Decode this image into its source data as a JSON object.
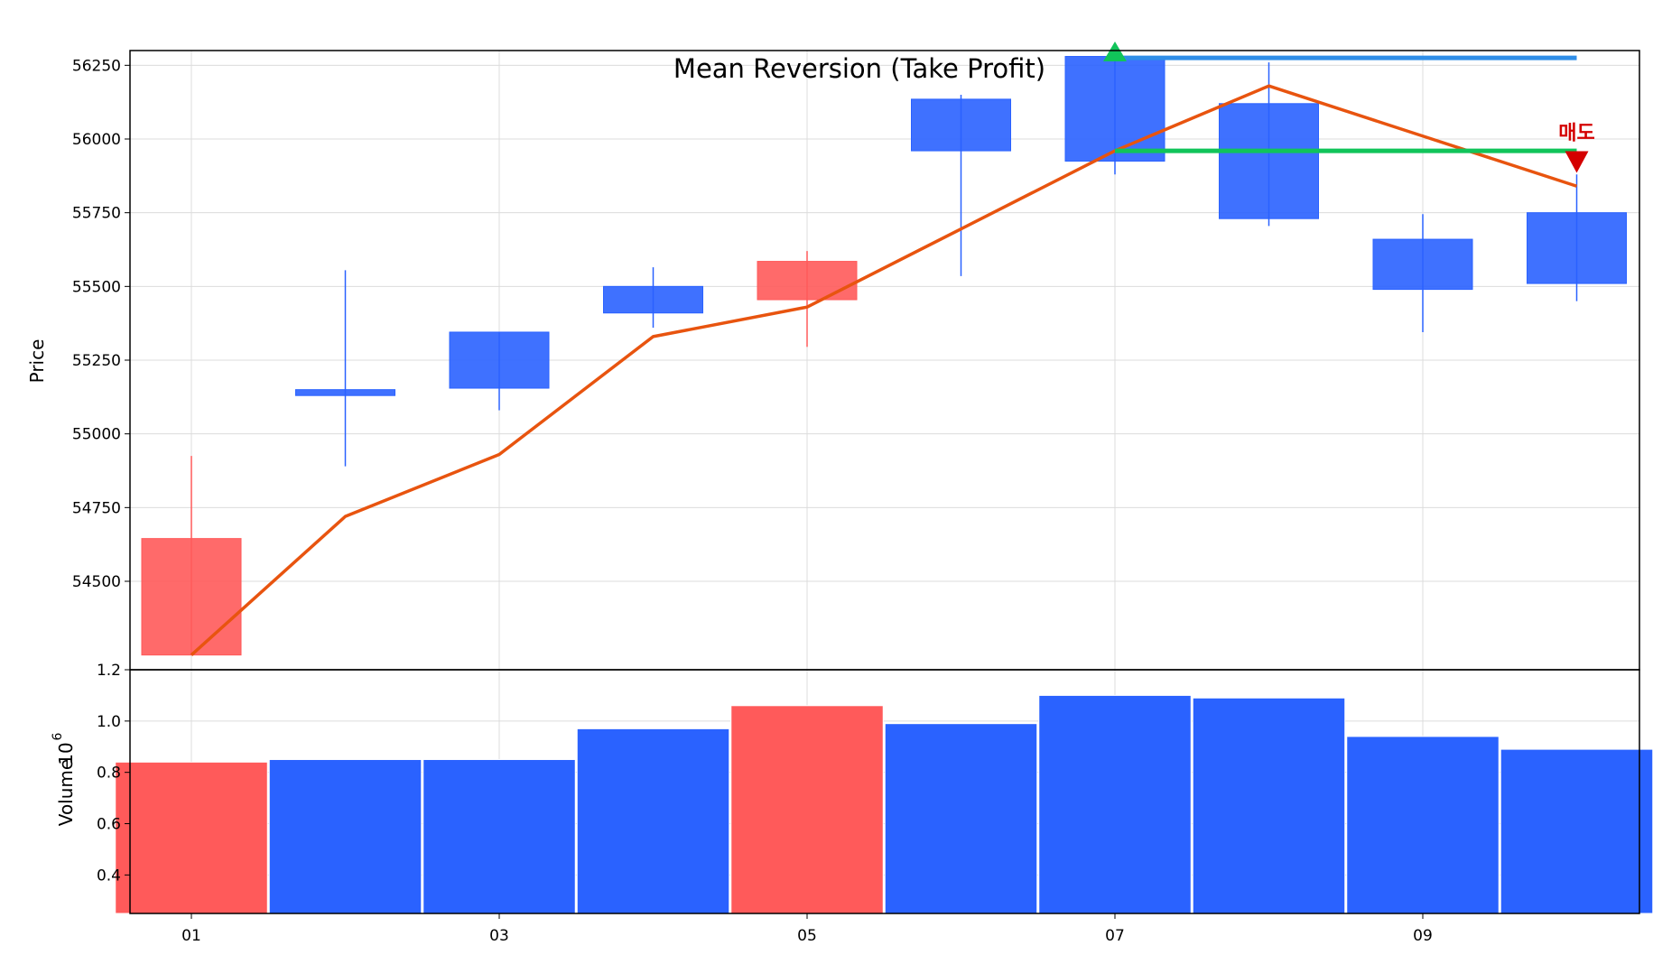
{
  "chart_data": {
    "title": "Mean Reversion (Take Profit)",
    "type": "candlestick",
    "colors": {
      "up": "#ff5a5a",
      "down": "#2a62ff",
      "ma": "#e8540f",
      "entry": "#11c45a",
      "take_profit": "#2f8ee8",
      "sell": "#d40000"
    },
    "x_tick_labels": [
      "01",
      "03",
      "05",
      "07",
      "09"
    ],
    "x_tick_days": [
      1,
      3,
      5,
      7,
      9
    ],
    "candles": [
      {
        "day": 1,
        "open": 54250,
        "high": 54925,
        "low": 54250,
        "close": 54645
      },
      {
        "day": 2,
        "open": 55150,
        "high": 55555,
        "low": 54890,
        "close": 55130
      },
      {
        "day": 3,
        "open": 55345,
        "high": 55345,
        "low": 55080,
        "close": 55155
      },
      {
        "day": 4,
        "open": 55500,
        "high": 55565,
        "low": 55360,
        "close": 55410
      },
      {
        "day": 5,
        "open": 55455,
        "high": 55620,
        "low": 55295,
        "close": 55585
      },
      {
        "day": 6,
        "open": 56135,
        "high": 56150,
        "low": 55535,
        "close": 55960
      },
      {
        "day": 7,
        "open": 56280,
        "high": 56280,
        "low": 55880,
        "close": 55925
      },
      {
        "day": 8,
        "open": 56120,
        "high": 56260,
        "low": 55705,
        "close": 55730
      },
      {
        "day": 9,
        "open": 55660,
        "high": 55745,
        "low": 55345,
        "close": 55490
      },
      {
        "day": 10,
        "open": 55750,
        "high": 55880,
        "low": 55450,
        "close": 55510
      }
    ],
    "moving_average": [
      54250,
      54720,
      54930,
      55330,
      55430,
      55695,
      55960,
      56180,
      56010,
      55840
    ],
    "take_profit_line": {
      "start_day": 7,
      "end_day": 10,
      "value": 56275
    },
    "entry_line": {
      "start_day": 7,
      "end_day": 10,
      "value": 55960
    },
    "buy_marker": {
      "day": 7,
      "price": 56300
    },
    "sell_marker": {
      "day": 10,
      "price": 55925,
      "label": "매도"
    },
    "price_axis": {
      "label": "Price",
      "ylim": [
        54200,
        56300
      ],
      "ticks": [
        54500,
        54750,
        55000,
        55250,
        55500,
        55750,
        56000,
        56250
      ]
    },
    "volume_axis": {
      "label": "Volume",
      "multiplier_base": "10",
      "multiplier_exp": "6",
      "ylim": [
        0.25,
        1.2
      ],
      "ticks": [
        0.4,
        0.6,
        0.8,
        1.0,
        1.2
      ],
      "tick_labels": [
        "0.4",
        "0.6",
        "0.8",
        "1.0",
        "1.2"
      ]
    },
    "volumes": [
      0.84,
      0.85,
      0.85,
      0.97,
      1.06,
      0.99,
      1.1,
      1.09,
      0.94,
      0.89
    ]
  }
}
